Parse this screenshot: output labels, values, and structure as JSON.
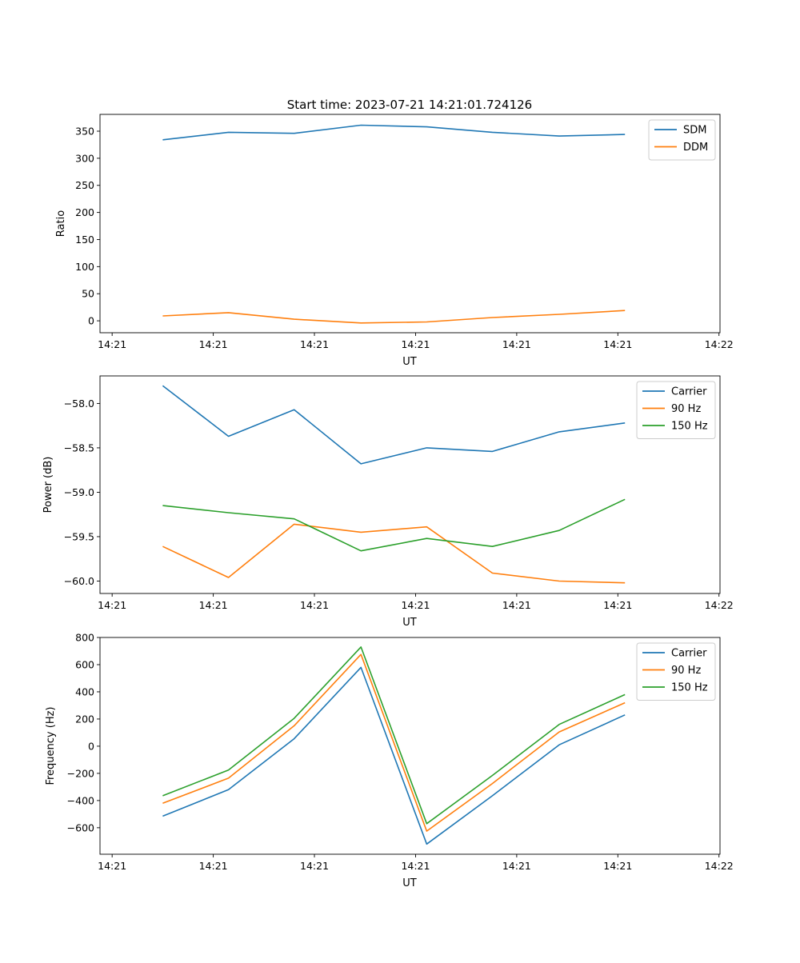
{
  "title": "Start time: 2023-07-21 14:21:01.724126",
  "colors": {
    "blue": "#1f77b4",
    "orange": "#ff7f0e",
    "green": "#2ca02c"
  },
  "chart_data": [
    {
      "type": "line",
      "title": "Start time: 2023-07-21 14:21:01.724126",
      "xlabel": "UT",
      "ylabel": "Ratio",
      "x_unit": "seconds after 14:21:00",
      "x": [
        5.0,
        11.5,
        18.0,
        24.6,
        31.1,
        37.6,
        44.2,
        50.7
      ],
      "xlim": [
        -1.2,
        60.1
      ],
      "xticks": [
        0,
        10,
        20,
        30,
        40,
        50,
        60
      ],
      "xtick_labels": [
        "14:21",
        "14:21",
        "14:21",
        "14:21",
        "14:21",
        "14:21",
        "14:22"
      ],
      "ylim": [
        -22,
        381
      ],
      "yticks": [
        0,
        50,
        100,
        150,
        200,
        250,
        300,
        350
      ],
      "ytick_labels": [
        "0",
        "50",
        "100",
        "150",
        "200",
        "250",
        "300",
        "350"
      ],
      "legend": "top-right",
      "series": [
        {
          "name": "SDM",
          "color": "#1f77b4",
          "values": [
            334,
            348,
            346,
            361,
            358,
            348,
            341,
            344
          ]
        },
        {
          "name": "DDM",
          "color": "#ff7f0e",
          "values": [
            9,
            15,
            3,
            -4,
            -2,
            6,
            12,
            19
          ]
        }
      ]
    },
    {
      "type": "line",
      "xlabel": "UT",
      "ylabel": "Power (dB)",
      "x_unit": "seconds after 14:21:00",
      "x": [
        5.0,
        11.5,
        18.0,
        24.6,
        31.1,
        37.6,
        44.2,
        50.7
      ],
      "xlim": [
        -1.2,
        60.1
      ],
      "xticks": [
        0,
        10,
        20,
        30,
        40,
        50,
        60
      ],
      "xtick_labels": [
        "14:21",
        "14:21",
        "14:21",
        "14:21",
        "14:21",
        "14:21",
        "14:22"
      ],
      "ylim": [
        -60.14,
        -57.69
      ],
      "yticks": [
        -60.0,
        -59.5,
        -59.0,
        -58.5,
        -58.0
      ],
      "ytick_labels": [
        "−60.0",
        "−59.5",
        "−59.0",
        "−58.5",
        "−58.0"
      ],
      "legend": "top-right",
      "series": [
        {
          "name": "Carrier",
          "color": "#1f77b4",
          "values": [
            -57.8,
            -58.37,
            -58.07,
            -58.68,
            -58.5,
            -58.54,
            -58.32,
            -58.22
          ]
        },
        {
          "name": "90 Hz",
          "color": "#ff7f0e",
          "values": [
            -59.61,
            -59.96,
            -59.36,
            -59.45,
            -59.39,
            -59.91,
            -60.0,
            -60.02
          ]
        },
        {
          "name": "150 Hz",
          "color": "#2ca02c",
          "values": [
            -59.15,
            -59.23,
            -59.3,
            -59.66,
            -59.52,
            -59.61,
            -59.43,
            -59.08
          ]
        }
      ]
    },
    {
      "type": "line",
      "xlabel": "UT",
      "ylabel": "Frequency (Hz)",
      "x_unit": "seconds after 14:21:00",
      "x": [
        5.0,
        11.5,
        18.0,
        24.6,
        31.1,
        37.6,
        44.2,
        50.7
      ],
      "xlim": [
        -1.2,
        60.1
      ],
      "xticks": [
        0,
        10,
        20,
        30,
        40,
        50,
        60
      ],
      "xtick_labels": [
        "14:21",
        "14:21",
        "14:21",
        "14:21",
        "14:21",
        "14:21",
        "14:22"
      ],
      "ylim": [
        -795,
        800
      ],
      "yticks": [
        -600,
        -400,
        -200,
        0,
        200,
        400,
        600,
        800
      ],
      "ytick_labels": [
        "−600",
        "−400",
        "−200",
        "0",
        "200",
        "400",
        "600",
        "800"
      ],
      "legend": "top-right",
      "series": [
        {
          "name": "Carrier",
          "color": "#1f77b4",
          "values": [
            -515,
            -320,
            55,
            580,
            -720,
            -365,
            10,
            230
          ]
        },
        {
          "name": "90 Hz",
          "color": "#ff7f0e",
          "values": [
            -420,
            -235,
            150,
            675,
            -625,
            -275,
            105,
            320
          ]
        },
        {
          "name": "150 Hz",
          "color": "#2ca02c",
          "values": [
            -365,
            -175,
            205,
            730,
            -570,
            -215,
            160,
            380
          ]
        }
      ]
    }
  ]
}
